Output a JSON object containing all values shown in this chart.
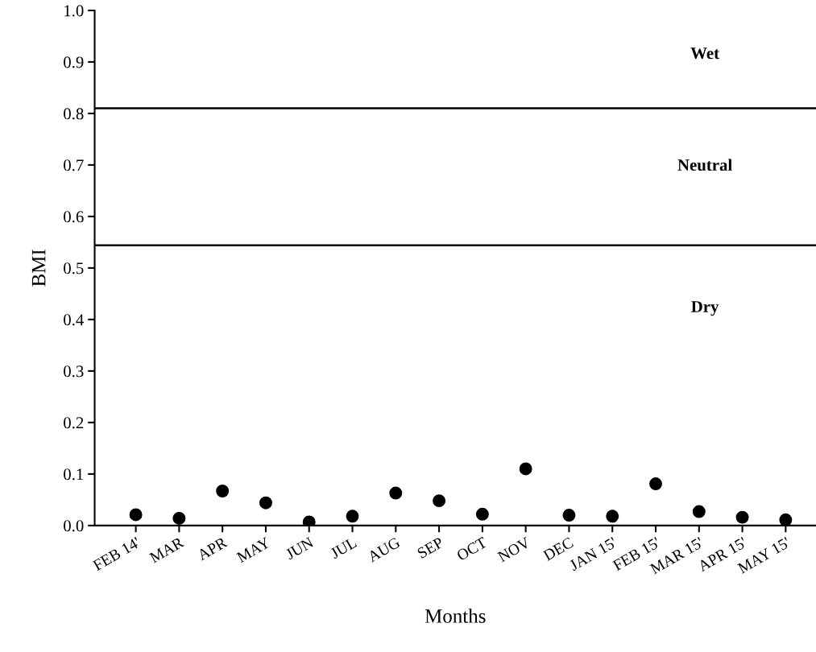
{
  "chart_data": {
    "type": "scatter",
    "xlabel": "Months",
    "ylabel": "BMI",
    "categories": [
      "FEB 14'",
      "MAR",
      "APR",
      "MAY",
      "JUN",
      "JUL",
      "AUG",
      "SEP",
      "OCT",
      "NOV",
      "DEC",
      "JAN 15'",
      "FEB 15'",
      "MAR 15'",
      "APR 15'",
      "MAY 15'"
    ],
    "series": [
      {
        "color": "#000000",
        "values": [
          0.021,
          0.014,
          0.067,
          0.044,
          0.007,
          0.018,
          0.063,
          0.048,
          0.022,
          0.11,
          0.02,
          0.018,
          0.081,
          0.027,
          0.016,
          0.011
        ]
      }
    ],
    "ylim": [
      0,
      1.0
    ],
    "yticks": [
      {
        "value": 0,
        "label": "0.0"
      },
      0.1,
      0.2,
      0.3,
      0.4,
      0.5,
      0.6,
      0.7,
      0.8,
      0.9,
      {
        "value": 1.0,
        "label": "1.0"
      }
    ],
    "marker": "circle",
    "grid": false,
    "legend": false,
    "ref_lines": [
      {
        "axis": "y",
        "value": 0.81,
        "color": "#000000"
      },
      {
        "axis": "y",
        "value": 0.544,
        "color": "#000000"
      }
    ],
    "annotations": [
      "Wet",
      "Neutral",
      "Dry"
    ]
  }
}
